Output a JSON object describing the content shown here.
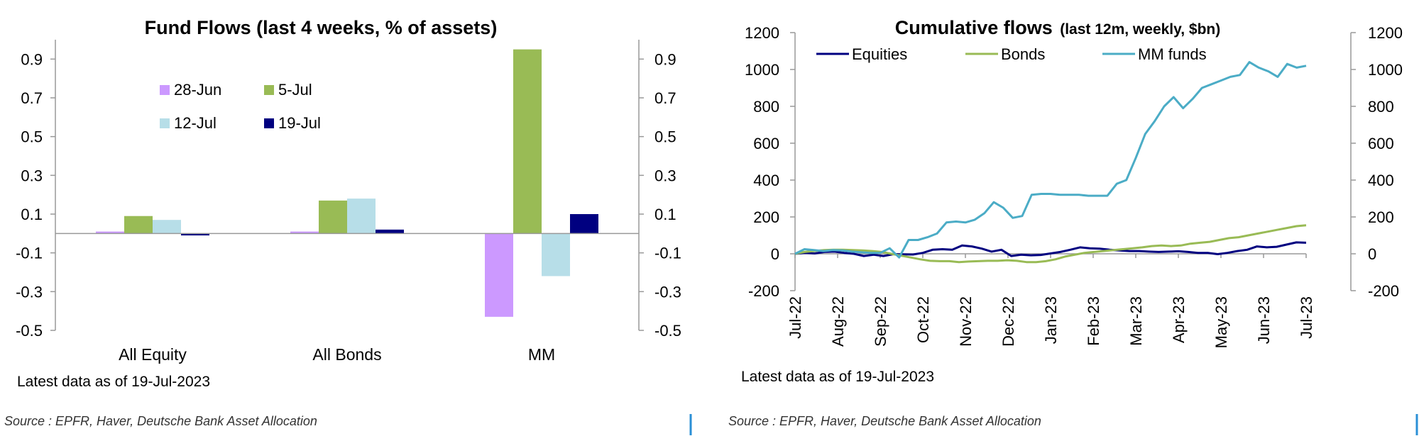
{
  "chart_data": [
    {
      "type": "bar",
      "title": "Fund Flows (last 4 weeks, % of assets)",
      "categories": [
        "All Equity",
        "All Bonds",
        "MM"
      ],
      "series": [
        {
          "name": "28-Jun",
          "color": "#cc99ff",
          "values": [
            0.01,
            0.01,
            -0.43
          ]
        },
        {
          "name": "5-Jul",
          "color": "#99bb55",
          "values": [
            0.09,
            0.17,
            0.95
          ]
        },
        {
          "name": "12-Jul",
          "color": "#b7dee8",
          "values": [
            0.07,
            0.18,
            -0.22
          ]
        },
        {
          "name": "19-Jul",
          "color": "#000080",
          "values": [
            -0.01,
            0.02,
            0.1
          ]
        }
      ],
      "ylim": [
        -0.5,
        1.0
      ],
      "yticks": [
        -0.5,
        -0.3,
        -0.1,
        0.1,
        0.3,
        0.5,
        0.7,
        0.9
      ],
      "ytick_labels": [
        "-0.5",
        "-0.3",
        "-0.1",
        "0.1",
        "0.3",
        "0.5",
        "0.7",
        "0.9"
      ],
      "note": "Latest data as of 19-Jul-2023",
      "source": "Source : EPFR, Haver, Deutsche Bank Asset Allocation"
    },
    {
      "type": "line",
      "title": "Cumulative flows",
      "title_suffix": "(last 12m, weekly, $bn)",
      "x_labels": [
        "Jul-22",
        "Aug-22",
        "Sep-22",
        "Oct-22",
        "Nov-22",
        "Dec-22",
        "Jan-23",
        "Feb-23",
        "Mar-23",
        "Apr-23",
        "May-23",
        "Jun-23",
        "Jul-23"
      ],
      "ylim": [
        -200,
        1200
      ],
      "yticks": [
        -200,
        0,
        200,
        400,
        600,
        800,
        1000,
        1200
      ],
      "series": [
        {
          "name": "Equities",
          "color": "#000080",
          "values": [
            0,
            5,
            2,
            10,
            12,
            5,
            0,
            -12,
            -5,
            -12,
            -2,
            -3,
            -4,
            5,
            22,
            25,
            22,
            45,
            40,
            28,
            12,
            22,
            -12,
            -5,
            -8,
            -6,
            2,
            10,
            22,
            35,
            30,
            28,
            22,
            18,
            15,
            15,
            12,
            10,
            12,
            14,
            10,
            5,
            5,
            -2,
            5,
            15,
            22,
            40,
            35,
            38,
            50,
            62,
            60
          ]
        },
        {
          "name": "Bonds",
          "color": "#99bb55",
          "values": [
            0,
            10,
            15,
            20,
            22,
            22,
            20,
            18,
            15,
            10,
            0,
            -10,
            -20,
            -30,
            -38,
            -40,
            -40,
            -45,
            -42,
            -40,
            -38,
            -38,
            -35,
            -38,
            -45,
            -45,
            -40,
            -30,
            -15,
            -5,
            5,
            10,
            15,
            20,
            25,
            30,
            35,
            42,
            45,
            42,
            45,
            55,
            60,
            65,
            75,
            85,
            90,
            100,
            110,
            120,
            130,
            140,
            150,
            155
          ]
        },
        {
          "name": "MM funds",
          "color": "#4bacc6",
          "values": [
            0,
            25,
            20,
            15,
            20,
            18,
            12,
            8,
            5,
            5,
            30,
            -20,
            75,
            75,
            90,
            110,
            170,
            175,
            170,
            185,
            220,
            280,
            250,
            195,
            205,
            320,
            325,
            325,
            320,
            320,
            320,
            315,
            315,
            315,
            380,
            400,
            520,
            650,
            720,
            800,
            850,
            790,
            840,
            900,
            920,
            940,
            960,
            970,
            1040,
            1010,
            990,
            960,
            1030,
            1010,
            1020
          ]
        }
      ],
      "note": "Latest data as of 19-Jul-2023",
      "source": "Source : EPFR, Haver, Deutsche Bank Asset Allocation"
    }
  ]
}
